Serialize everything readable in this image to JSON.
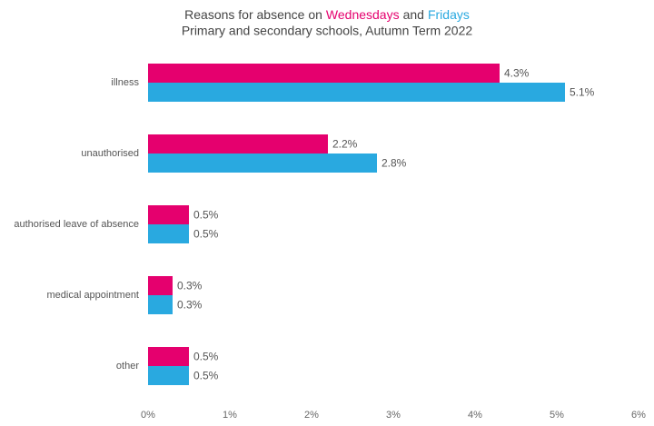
{
  "chart_data": {
    "type": "hbar",
    "title_segments": [
      "Reasons for absence on",
      "and"
    ],
    "subtitle": "Primary and secondary schools, Autumn Term 2022",
    "categories": [
      "illness",
      "unauthorised",
      "authorised leave of absence",
      "medical appointment",
      "other"
    ],
    "series": [
      {
        "name": "Wednesdays",
        "color": "#e5006e",
        "values": [
          4.3,
          2.2,
          0.5,
          0.3,
          0.5
        ],
        "value_labels": [
          "4.3%",
          "2.2%",
          "0.5%",
          "0.3%",
          "0.5%"
        ]
      },
      {
        "name": "Fridays",
        "color": "#29a9e0",
        "values": [
          5.1,
          2.8,
          0.5,
          0.3,
          0.5
        ],
        "value_labels": [
          "5.1%",
          "2.8%",
          "0.5%",
          "0.3%",
          "0.5%"
        ]
      }
    ],
    "xlim": [
      0,
      6
    ],
    "xticks": [
      {
        "value": 0,
        "label": "0%"
      },
      {
        "value": 1,
        "label": "1%"
      },
      {
        "value": 2,
        "label": "2%"
      },
      {
        "value": 3,
        "label": "3%"
      },
      {
        "value": 4,
        "label": "4%"
      },
      {
        "value": 5,
        "label": "5%"
      },
      {
        "value": 6,
        "label": "6%"
      }
    ],
    "grid": false
  }
}
